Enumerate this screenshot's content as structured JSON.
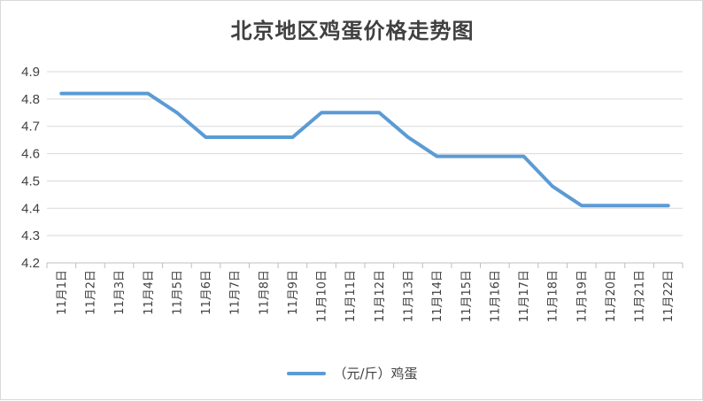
{
  "chart_data": {
    "type": "line",
    "title": "北京地区鸡蛋价格走势图",
    "categories": [
      "11月1日",
      "11月2日",
      "11月3日",
      "11月4日",
      "11月5日",
      "11月6日",
      "11月7日",
      "11月8日",
      "11月9日",
      "11月10日",
      "11月11日",
      "11月12日",
      "11月13日",
      "11月14日",
      "11月15日",
      "11月16日",
      "11月17日",
      "11月18日",
      "11月19日",
      "11月20日",
      "11月21日",
      "11月22日"
    ],
    "series": [
      {
        "name": "（元/斤）鸡蛋",
        "color": "#5b9bd5",
        "values": [
          4.82,
          4.82,
          4.82,
          4.82,
          4.75,
          4.66,
          4.66,
          4.66,
          4.66,
          4.75,
          4.75,
          4.75,
          4.66,
          4.59,
          4.59,
          4.59,
          4.59,
          4.48,
          4.41,
          4.41,
          4.41,
          4.41
        ]
      }
    ],
    "ylim": [
      4.2,
      4.9
    ],
    "yticks": [
      "4.2",
      "4.3",
      "4.4",
      "4.5",
      "4.6",
      "4.7",
      "4.8",
      "4.9"
    ],
    "grid": true,
    "legend_position": "bottom"
  }
}
